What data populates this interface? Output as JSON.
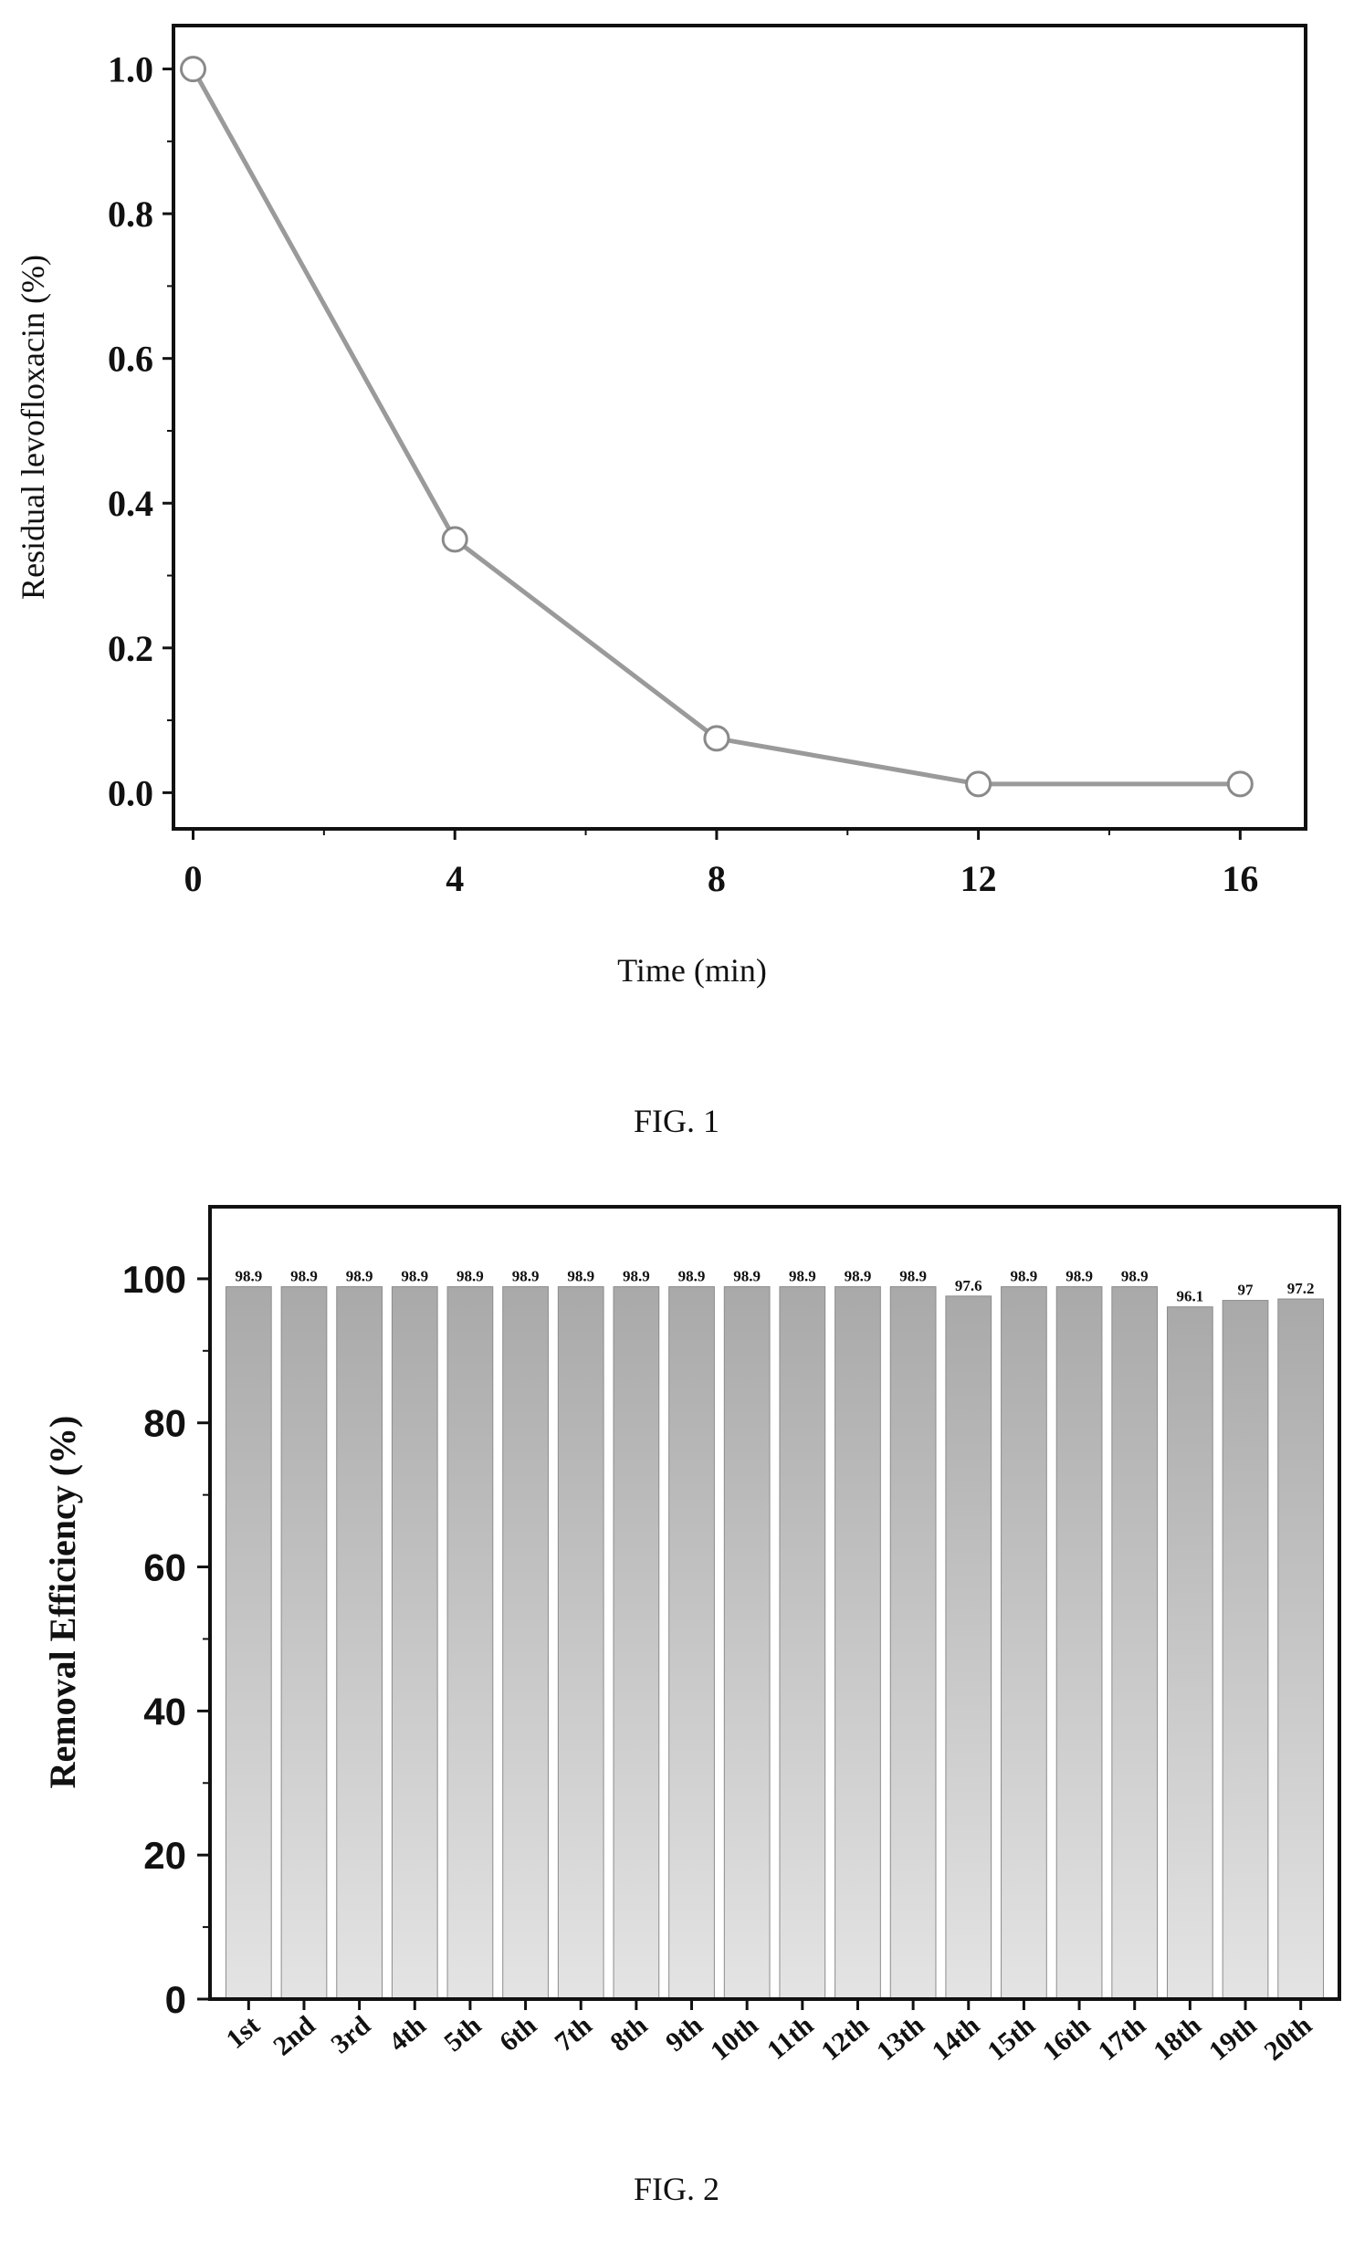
{
  "chart_data": [
    {
      "type": "line",
      "caption": "FIG. 1",
      "title": "",
      "xlabel": "Time (min)",
      "ylabel": "Residual levofloxacin (%)",
      "x": [
        0,
        4,
        8,
        12,
        16
      ],
      "series": [
        {
          "values": [
            1.0,
            0.35,
            0.075,
            0.012,
            0.012
          ]
        }
      ],
      "xlim": [
        -0.3,
        17
      ],
      "ylim": [
        -0.05,
        1.06
      ],
      "xticks": [
        0,
        4,
        8,
        12,
        16
      ],
      "xtick_labels": [
        "0",
        "4",
        "8",
        "12",
        "16"
      ],
      "yticks": [
        0.0,
        0.2,
        0.4,
        0.6,
        0.8,
        1.0
      ],
      "ytick_labels": [
        "0.0",
        "0.2",
        "0.4",
        "0.6",
        "0.8",
        "1.0"
      ],
      "marker": "open-circle",
      "grid": false,
      "colors": {
        "line": "#9a9a9a",
        "marker": "#8a8a8a",
        "frame": "#111111"
      }
    },
    {
      "type": "bar",
      "caption": "FIG. 2",
      "title": "",
      "xlabel": "",
      "ylabel": "Removal Efficiency (%)",
      "categories": [
        "1st",
        "2nd",
        "3rd",
        "4th",
        "5th",
        "6th",
        "7th",
        "8th",
        "9th",
        "10th",
        "11th",
        "12th",
        "13th",
        "14th",
        "15th",
        "16th",
        "17th",
        "18th",
        "19th",
        "20th"
      ],
      "values": [
        98.9,
        98.9,
        98.9,
        98.9,
        98.9,
        98.9,
        98.9,
        98.9,
        98.9,
        98.9,
        98.9,
        98.9,
        98.9,
        97.6,
        98.9,
        98.9,
        98.9,
        96.1,
        97,
        97.2
      ],
      "data_labels": [
        "98.9",
        "98.9",
        "98.9",
        "98.9",
        "98.9",
        "98.9",
        "98.9",
        "98.9",
        "98.9",
        "98.9",
        "98.9",
        "98.9",
        "98.9",
        "97.6",
        "98.9",
        "98.9",
        "98.9",
        "96.1",
        "97",
        "97.2"
      ],
      "ylim": [
        0,
        110
      ],
      "yticks": [
        0,
        20,
        40,
        60,
        80,
        100
      ],
      "ytick_labels": [
        "0",
        "20",
        "40",
        "60",
        "80",
        "100"
      ],
      "grid": false,
      "colors": {
        "bar_top": "#a9a9a9",
        "bar_bottom": "#e4e4e4",
        "frame": "#111111"
      }
    }
  ]
}
